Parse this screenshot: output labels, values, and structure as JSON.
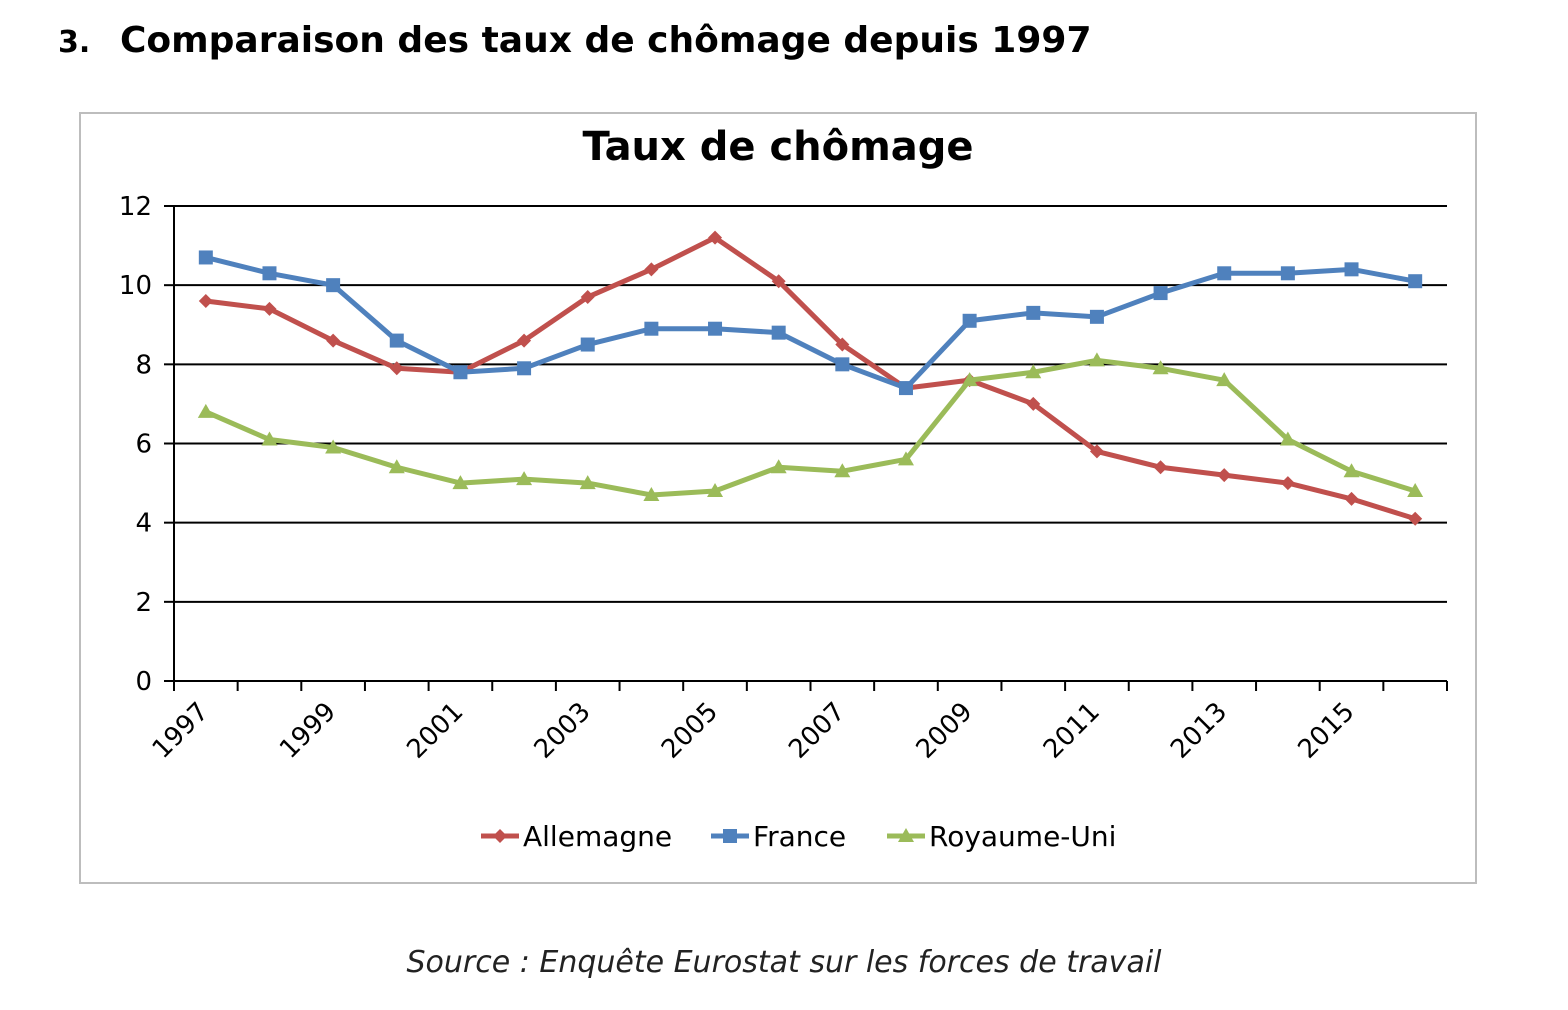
{
  "heading": {
    "number": "3.",
    "title": "Comparaison des taux de chômage depuis 1997"
  },
  "source": "Source : Enquête Eurostat sur les forces de travail",
  "colors": {
    "allemagne": "#c0504d",
    "france": "#4f81bd",
    "royaume_uni": "#9bbb59",
    "gridline": "#000000",
    "axis": "#000000"
  },
  "chart_data": {
    "type": "line",
    "title": "Taux de chômage",
    "xlabel": "",
    "ylabel": "",
    "ylim": [
      0,
      12
    ],
    "yticks": [
      0,
      2,
      4,
      6,
      8,
      10,
      12
    ],
    "grid": true,
    "legend_position": "bottom",
    "x": [
      1997,
      1998,
      1999,
      2000,
      2001,
      2002,
      2003,
      2004,
      2005,
      2006,
      2007,
      2008,
      2009,
      2010,
      2011,
      2012,
      2013,
      2014,
      2015,
      2016
    ],
    "xtick_labels": [
      "1997",
      "1999",
      "2001",
      "2003",
      "2005",
      "2007",
      "2009",
      "2011",
      "2013",
      "2015"
    ],
    "series": [
      {
        "name": "Allemagne",
        "marker": "diamond",
        "color": "#c0504d",
        "values": [
          9.6,
          9.4,
          8.6,
          7.9,
          7.8,
          8.6,
          9.7,
          10.4,
          11.2,
          10.1,
          8.5,
          7.4,
          7.6,
          7.0,
          5.8,
          5.4,
          5.2,
          5.0,
          4.6,
          4.1
        ]
      },
      {
        "name": "France",
        "marker": "square",
        "color": "#4f81bd",
        "values": [
          10.7,
          10.3,
          10.0,
          8.6,
          7.8,
          7.9,
          8.5,
          8.9,
          8.9,
          8.8,
          8.0,
          7.4,
          9.1,
          9.3,
          9.2,
          9.8,
          10.3,
          10.3,
          10.4,
          10.1
        ]
      },
      {
        "name": "Royaume-Uni",
        "marker": "triangle",
        "color": "#9bbb59",
        "values": [
          6.8,
          6.1,
          5.9,
          5.4,
          5.0,
          5.1,
          5.0,
          4.7,
          4.8,
          5.4,
          5.3,
          5.6,
          7.6,
          7.8,
          8.1,
          7.9,
          7.6,
          6.1,
          5.3,
          4.8
        ]
      }
    ]
  }
}
